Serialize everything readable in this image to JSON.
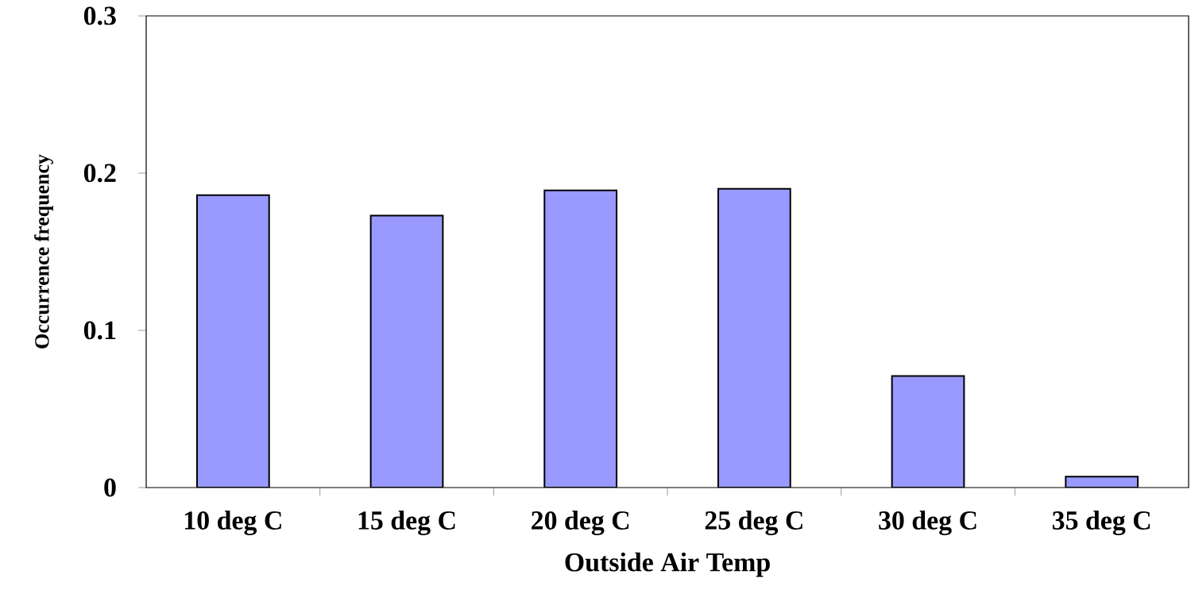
{
  "chart_data": {
    "type": "bar",
    "xlabel": "Outside Air Temp",
    "ylabel": "Occurrence frequency",
    "categories": [
      "10 deg C",
      "15 deg C",
      "20 deg C",
      "25 deg C",
      "30 deg C",
      "35 deg C"
    ],
    "values": [
      0.186,
      0.173,
      0.189,
      0.19,
      0.071,
      0.007
    ],
    "color": "#9999ff",
    "ylim": [
      0,
      0.3
    ],
    "yticks": [
      0,
      0.1,
      0.2,
      0.3
    ],
    "grid": false
  }
}
